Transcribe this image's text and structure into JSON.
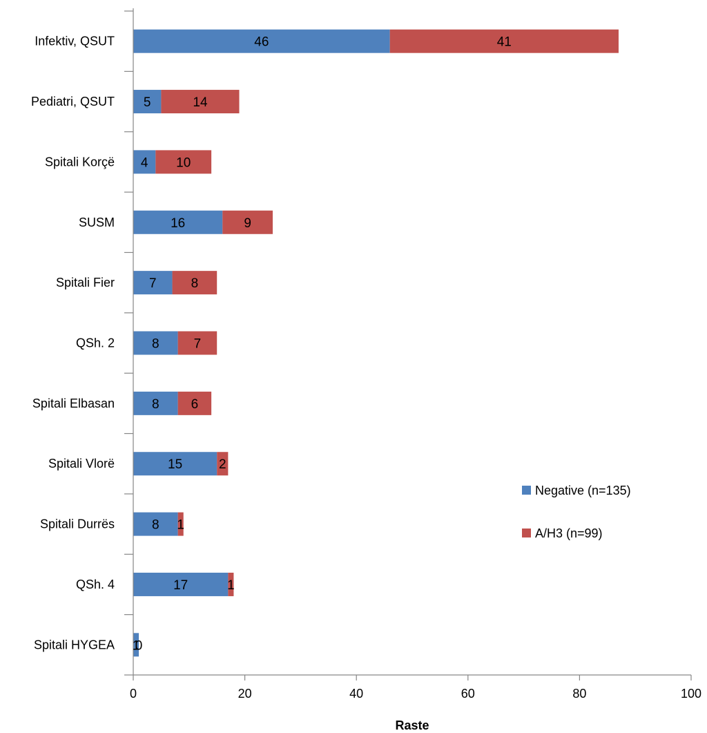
{
  "chart_data": {
    "type": "bar",
    "orientation": "horizontal",
    "stacked": true,
    "categories": [
      "Infektiv, QSUT",
      "Pediatri, QSUT",
      "Spitali Korçë",
      "SUSM",
      "Spitali Fier",
      "QSh. 2",
      "Spitali Elbasan",
      "Spitali Vlorë",
      "Spitali Durrës",
      "QSh. 4",
      "Spitali HYGEA"
    ],
    "series": [
      {
        "name": "Negative (n=135)",
        "color": "#4f81bd",
        "values": [
          46,
          5,
          4,
          16,
          7,
          8,
          8,
          15,
          8,
          17,
          1
        ]
      },
      {
        "name": "A/H3 (n=99)",
        "color": "#c0504d",
        "values": [
          41,
          14,
          10,
          9,
          8,
          7,
          6,
          2,
          1,
          1,
          0
        ]
      }
    ],
    "xlabel": "Raste",
    "ylabel": "",
    "title": "",
    "xlim": [
      0,
      100
    ],
    "xticks": [
      0,
      20,
      40,
      60,
      80,
      100
    ],
    "grid": false,
    "legend_position": "right"
  }
}
